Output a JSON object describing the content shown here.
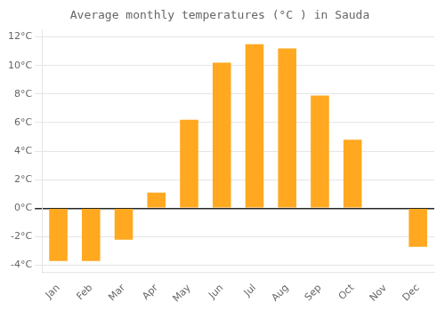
{
  "chart_data": {
    "type": "bar",
    "title": "Average monthly temperatures (°C ) in Sauda",
    "categories": [
      "Jan",
      "Feb",
      "Mar",
      "Apr",
      "May",
      "Jun",
      "Jul",
      "Aug",
      "Sep",
      "Oct",
      "Nov",
      "Dec"
    ],
    "values": [
      -3.7,
      -3.7,
      -2.2,
      1.1,
      6.2,
      10.2,
      11.5,
      11.2,
      7.9,
      4.8,
      0.0,
      -2.7
    ],
    "color": "#FFA820",
    "ylim": [
      -4.5,
      12.5
    ],
    "yticks": [
      {
        "value": -4,
        "label": "-4°C"
      },
      {
        "value": -2,
        "label": "-2°C"
      },
      {
        "value": 0,
        "label": "0°C"
      },
      {
        "value": 2,
        "label": "2°C"
      },
      {
        "value": 4,
        "label": "4°C"
      },
      {
        "value": 6,
        "label": "6°C"
      },
      {
        "value": 8,
        "label": "8°C"
      },
      {
        "value": 10,
        "label": "10°C"
      },
      {
        "value": 12,
        "label": "12°C"
      }
    ],
    "grid": true
  }
}
